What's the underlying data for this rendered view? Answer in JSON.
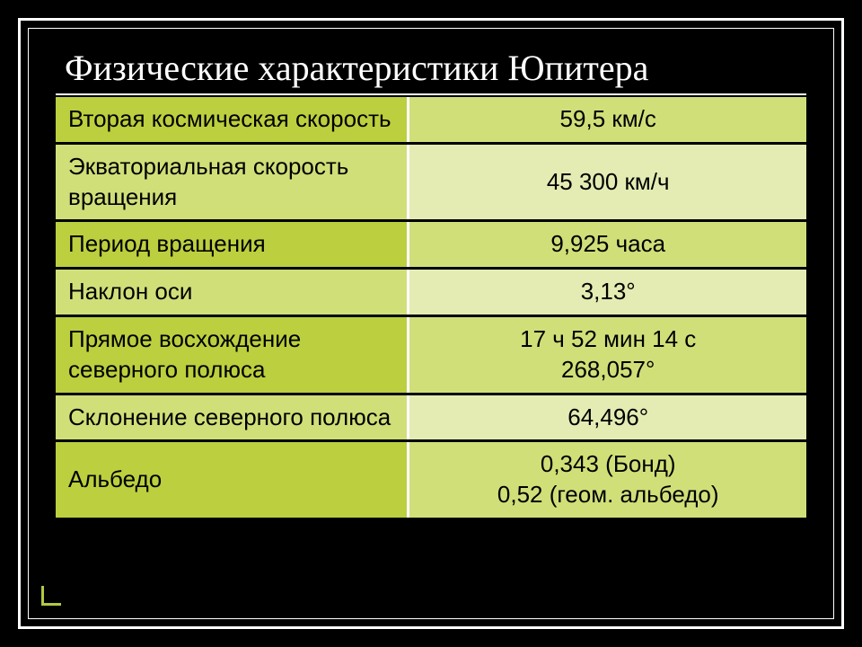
{
  "slide": {
    "title": "Физические характеристики Юпитера",
    "title_color": "#ffffff",
    "title_fontsize": 40,
    "title_font": "Times New Roman",
    "background_color": "#000000",
    "frame_border_color": "#ffffff",
    "accent_color": "#b5c842"
  },
  "table": {
    "type": "table",
    "label_fontsize": 26,
    "value_fontsize": 26,
    "text_color": "#000000",
    "odd_label_bg": "#bccf3e",
    "odd_value_bg": "#d1df79",
    "even_label_bg": "#d1df79",
    "even_value_bg": "#e4ecb3",
    "border_dark": "#000000",
    "border_light": "#ffffff",
    "columns": [
      "label",
      "value"
    ],
    "rows": [
      {
        "label": "Вторая космическая скорость",
        "value": "59,5 км/с"
      },
      {
        "label": "Экваториальная скорость вращения",
        "value": "45 300 км/ч"
      },
      {
        "label": "Период вращения",
        "value": "9,925 часа"
      },
      {
        "label": "Наклон оси",
        "value": "3,13°"
      },
      {
        "label": "Прямое восхождение северного полюса",
        "value": "17 ч 52 мин 14 с\n268,057°"
      },
      {
        "label": "Склонение северного полюса",
        "value": "64,496°"
      },
      {
        "label": "Альбедо",
        "value": "0,343 (Бонд)\n0,52 (геом. альбедо)"
      }
    ]
  }
}
